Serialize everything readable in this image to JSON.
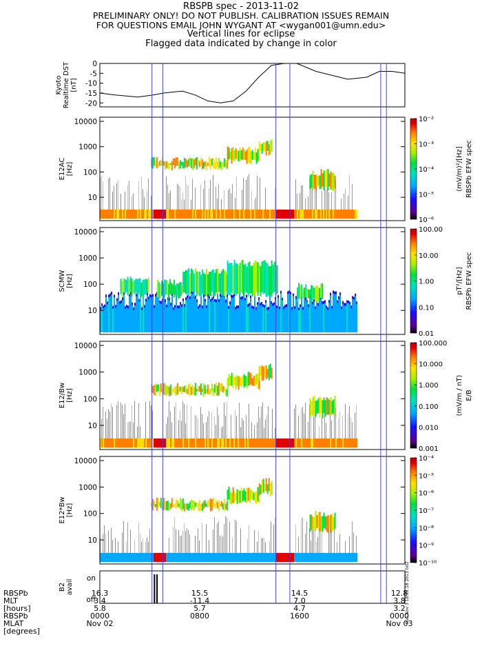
{
  "header": {
    "title": "RBSPB spec - 2013-11-02",
    "line2": "PRELIMINARY ONLY! DO NOT PUBLISH. CALIBRATION ISSUES REMAIN",
    "line3": "FOR QUESTIONS EMAIL JOHN WYGANT AT <wygan001@umn.edu>",
    "line4": "Vertical lines for eclipse",
    "line5": "Flagged data indicated by change in color"
  },
  "chart_data": [
    {
      "type": "line",
      "ylabel": [
        "Kyoto",
        "Realtime DST",
        "[nT]"
      ],
      "yticks": [
        "0",
        "-5",
        "-10",
        "-15",
        "-20"
      ],
      "ylim": [
        -22,
        0
      ],
      "x_hours": [
        0,
        1.2,
        3,
        4.2,
        5,
        6.5,
        7.5,
        8.5,
        9.5,
        10.5,
        11.5,
        12.5,
        13.5,
        14.5,
        15.5,
        17,
        19.5,
        21,
        22,
        23,
        24
      ],
      "values": [
        -15,
        -16,
        -17,
        -16,
        -15,
        -14,
        -16,
        -19,
        -20,
        -19,
        -14,
        -7,
        -1,
        0,
        0,
        -4,
        -8,
        -7,
        -4,
        -4,
        -5
      ]
    },
    {
      "type": "heatmap",
      "name": "E12AC",
      "ylabel": [
        "E12AC",
        "[Hz]"
      ],
      "yticks": [
        "10000",
        "1000",
        "100",
        "10"
      ],
      "colorbar": {
        "label": [
          "RBSPb EFW spec",
          "(mV/m)²/[Hz]"
        ],
        "ticks": [
          "10⁻²",
          "10⁻³",
          "10⁻⁴",
          "10⁻⁵",
          "10⁻⁶"
        ]
      }
    },
    {
      "type": "heatmap",
      "name": "SCMW",
      "ylabel": [
        "SCMW",
        "[Hz]"
      ],
      "yticks": [
        "10000",
        "1000",
        "100",
        "10"
      ],
      "colorbar": {
        "label": [
          "RBSPb EFW spec",
          "pT²/[Hz]"
        ],
        "ticks": [
          "100.00",
          "10.00",
          "1.00",
          "0.10",
          "0.01"
        ]
      }
    },
    {
      "type": "heatmap",
      "name": "E12/Bw",
      "ylabel": [
        "E12/Bw",
        "[Hz]"
      ],
      "yticks": [
        "10000",
        "1000",
        "100",
        "10"
      ],
      "colorbar": {
        "label": [
          "E/B",
          "(mV/m / nT)"
        ],
        "ticks": [
          "100.000",
          "10.000",
          "1.000",
          "0.100",
          "0.010",
          "0.001"
        ]
      }
    },
    {
      "type": "heatmap",
      "name": "E12*Bw",
      "ylabel": [
        "E12*Bw",
        "[Hz]"
      ],
      "yticks": [
        "10000",
        "1000",
        "100",
        "10"
      ],
      "colorbar": {
        "label": [],
        "ticks": [
          "10⁻⁴",
          "10⁻⁵",
          "10⁻⁶",
          "10⁻⁷",
          "10⁻⁸",
          "10⁻⁹",
          "10⁻¹⁰"
        ]
      }
    },
    {
      "type": "line",
      "name": "B2 avail",
      "ylabel": [
        "B2",
        "avail"
      ],
      "yticks": [
        "on",
        "off"
      ]
    }
  ],
  "footer": {
    "labels": [
      "RBSPb",
      "MLT",
      "[hours]",
      "RBSPb",
      "MLAT",
      "[degrees]"
    ],
    "ticks": [
      {
        "rows": [
          "16.3",
          "3.4",
          "5.8",
          "0000",
          "Nov 02"
        ]
      },
      {
        "rows": [
          "15.5",
          "-11.4",
          "5.7",
          "0800",
          ""
        ]
      },
      {
        "rows": [
          "14.5",
          "7.0",
          "4.7",
          "1600",
          ""
        ]
      },
      {
        "rows": [
          "12.8",
          "3.8",
          "3.2",
          "0000",
          "Nov 03"
        ]
      }
    ]
  },
  "stamp": "Sun Nov 3 18:11:18 2013 txt2",
  "colors": {
    "eclipse_line": "#4040ff"
  }
}
